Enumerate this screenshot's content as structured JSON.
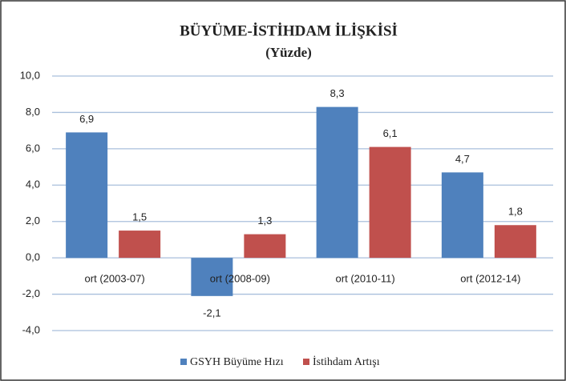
{
  "chart_data": {
    "type": "bar",
    "title": "BÜYÜME-İSTİHDAM İLİŞKİSİ",
    "subtitle": "(Yüzde)",
    "categories": [
      "ort (2003-07)",
      "ort (2008-09)",
      "ort (2010-11)",
      "ort (2012-14)"
    ],
    "series": [
      {
        "name": "GSYH Büyüme Hızı",
        "color": "#4f81bd",
        "values": [
          6.9,
          -2.1,
          8.3,
          4.7
        ],
        "value_labels": [
          "6,9",
          "-2,1",
          "8,3",
          "4,7"
        ]
      },
      {
        "name": "İstihdam Artışı",
        "color": "#c0504d",
        "values": [
          1.5,
          1.3,
          6.1,
          1.8
        ],
        "value_labels": [
          "1,5",
          "1,3",
          "6,1",
          "1,8"
        ]
      }
    ],
    "ylim": [
      -4,
      10
    ],
    "yticks": [
      {
        "value": -4,
        "label": "-4,0"
      },
      {
        "value": -2,
        "label": "-2,0"
      },
      {
        "value": 0,
        "label": "0,0"
      },
      {
        "value": 2,
        "label": "2,0"
      },
      {
        "value": 4,
        "label": "4,0"
      },
      {
        "value": 6,
        "label": "6,0"
      },
      {
        "value": 8,
        "label": "8,0"
      },
      {
        "value": 10,
        "label": "10,0"
      }
    ],
    "grid": true,
    "legend": "bottom"
  }
}
